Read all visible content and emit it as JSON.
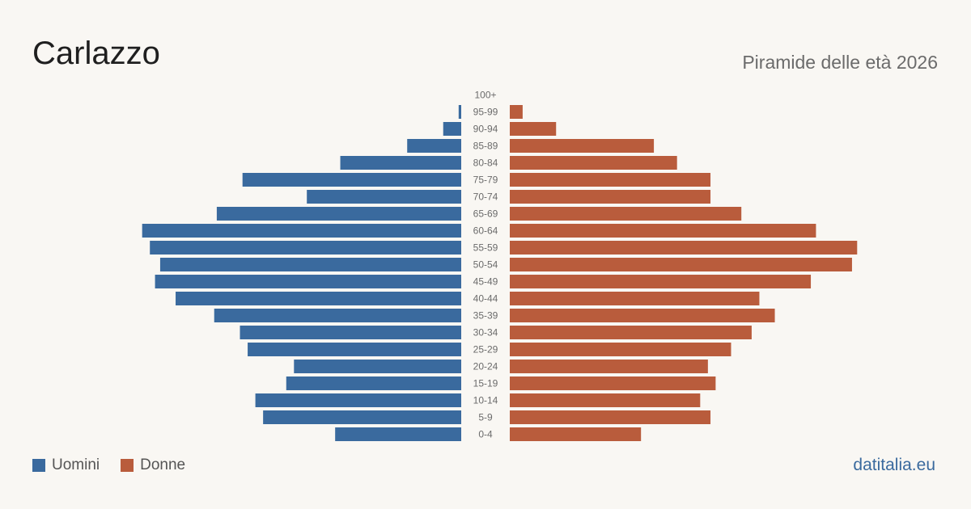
{
  "header": {
    "title": "Carlazzo",
    "subtitle": "Piramide delle età 2026"
  },
  "legend": {
    "men_label": "Uomini",
    "women_label": "Donne"
  },
  "source": "datitalia.eu",
  "colors": {
    "men": "#3a6a9e",
    "women": "#b95c3c",
    "background": "#f9f7f3"
  },
  "chart_data": {
    "type": "bar",
    "orientation": "horizontal-pyramid",
    "categories": [
      "100+",
      "95-99",
      "90-94",
      "85-89",
      "80-84",
      "75-79",
      "70-74",
      "65-69",
      "60-64",
      "55-59",
      "50-54",
      "45-49",
      "40-44",
      "35-39",
      "30-34",
      "25-29",
      "20-24",
      "15-19",
      "10-14",
      "5-9",
      "0-4"
    ],
    "series": [
      {
        "name": "Uomini",
        "values": [
          0,
          1,
          7,
          21,
          47,
          85,
          60,
          95,
          124,
          121,
          117,
          119,
          111,
          96,
          86,
          83,
          65,
          68,
          80,
          77,
          49
        ]
      },
      {
        "name": "Donne",
        "values": [
          0,
          5,
          18,
          56,
          65,
          78,
          78,
          90,
          119,
          135,
          133,
          117,
          97,
          103,
          94,
          86,
          77,
          80,
          74,
          78,
          51
        ]
      }
    ],
    "grid": false,
    "legend_position": "bottom-left"
  }
}
